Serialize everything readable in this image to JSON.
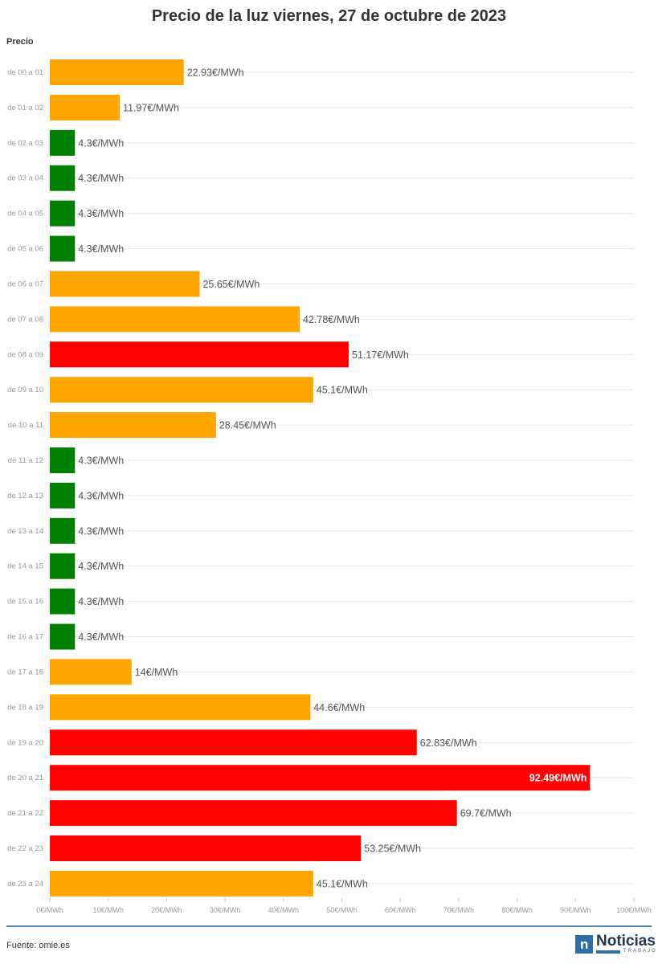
{
  "title": "Precio de la luz viernes, 27 de octubre de 2023",
  "footer": {
    "source": "Fuente: omie.es",
    "logo_text": "Noticias",
    "logo_sub": "TRABAJO",
    "logo_mark": "n"
  },
  "colors": {
    "low": "#008000",
    "mid": "#ffa500",
    "high": "#ff0000",
    "grid": "#e6e6e6",
    "rule": "#4a86b8"
  },
  "chart_data": {
    "type": "bar",
    "orientation": "horizontal",
    "title": "Precio de la luz viernes, 27 de octubre de 2023",
    "ylabel": "Precio",
    "xlabel": "",
    "xlim": [
      0,
      100
    ],
    "x_ticks": [
      "0€/MWh",
      "10€/MWh",
      "20€/MWh",
      "30€/MWh",
      "40€/MWh",
      "50€/MWh",
      "60€/MWh",
      "70€/MWh",
      "80€/MWh",
      "90€/MWh",
      "100€/MWh"
    ],
    "grid": true,
    "categories": [
      "de 00 a 01",
      "de 01 a 02",
      "de 02 a 03",
      "de 03 a 04",
      "de 04 a 05",
      "de 05 a 06",
      "de 06 a 07",
      "de 07 a 08",
      "de 08 a 09",
      "de 09 a 10",
      "de 10 a 11",
      "de 11 a 12",
      "de 12 a 13",
      "de 13 a 14",
      "de 14 a 15",
      "de 15 a 16",
      "de 16 a 17",
      "de 17 a 18",
      "de 18 a 19",
      "de 19 a 20",
      "de 20 a 21",
      "de 21 a 22",
      "de 22 a 23",
      "de 23 a 24"
    ],
    "values": [
      22.93,
      11.97,
      4.3,
      4.3,
      4.3,
      4.3,
      25.65,
      42.78,
      51.17,
      45.1,
      28.45,
      4.3,
      4.3,
      4.3,
      4.3,
      4.3,
      4.3,
      14,
      44.6,
      62.83,
      92.49,
      69.7,
      53.25,
      45.1
    ],
    "labels": [
      "22.93€/MWh",
      "11.97€/MWh",
      "4.3€/MWh",
      "4.3€/MWh",
      "4.3€/MWh",
      "4.3€/MWh",
      "25.65€/MWh",
      "42.78€/MWh",
      "51.17€/MWh",
      "45.1€/MWh",
      "28.45€/MWh",
      "4.3€/MWh",
      "4.3€/MWh",
      "4.3€/MWh",
      "4.3€/MWh",
      "4.3€/MWh",
      "4.3€/MWh",
      "14€/MWh",
      "44.6€/MWh",
      "62.83€/MWh",
      "92.49€/MWh",
      "69.7€/MWh",
      "53.25€/MWh",
      "45.1€/MWh"
    ],
    "bar_colors": [
      "mid",
      "mid",
      "low",
      "low",
      "low",
      "low",
      "mid",
      "mid",
      "high",
      "mid",
      "mid",
      "low",
      "low",
      "low",
      "low",
      "low",
      "low",
      "mid",
      "mid",
      "high",
      "high",
      "high",
      "high",
      "mid"
    ]
  }
}
